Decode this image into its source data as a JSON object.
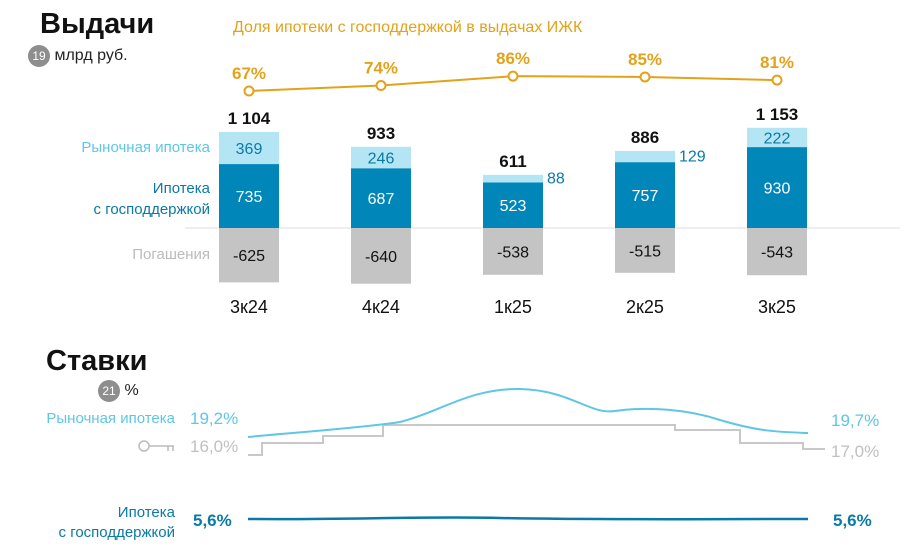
{
  "issuance": {
    "title": "Выдачи",
    "badge": "19",
    "unit": "млрд руб.",
    "legend_market": "Рыночная ипотека",
    "legend_gov_1": "Ипотека",
    "legend_gov_2": "с господдержкой",
    "legend_repay": "Погашения",
    "share_title": "Доля ипотеки с господдержкой в выдачах ИЖК"
  },
  "rates": {
    "title": "Ставки",
    "badge": "21",
    "unit": "%",
    "market_label": "Рыночная ипотека",
    "market_start": "19,2%",
    "market_end": "19,7%",
    "key_icon": "key-icon",
    "key_start": "16,0%",
    "key_end": "17,0%",
    "gov_label_1": "Ипотека",
    "gov_label_2": "с господдержкой",
    "gov_start": "5,6%",
    "gov_end": "5,6%"
  },
  "colors": {
    "market": "#b3e5f5",
    "gov": "#0086b8",
    "repay": "#c4c4c4",
    "share": "#e3a21a",
    "market_line": "#5fc6e6",
    "key_line": "#c8c8c8",
    "gov_line": "#0a7aa5"
  },
  "chart_data": {
    "type": "bar",
    "categories": [
      "3к24",
      "4к24",
      "1к25",
      "2к25",
      "3к25"
    ],
    "series": [
      {
        "name": "Рыночная ипотека",
        "values": [
          369,
          246,
          88,
          129,
          222
        ]
      },
      {
        "name": "Ипотека с господдержкой",
        "values": [
          735,
          687,
          523,
          757,
          930
        ]
      },
      {
        "name": "Погашения",
        "values": [
          -625,
          -640,
          -538,
          -515,
          -543
        ]
      }
    ],
    "totals": [
      "1 104",
      "933",
      "611",
      "886",
      "1 153"
    ],
    "share_line": {
      "name": "Доля ипотеки с господдержкой в выдачах ИЖК",
      "values": [
        67,
        74,
        86,
        85,
        81
      ],
      "labels": [
        "67%",
        "74%",
        "86%",
        "85%",
        "81%"
      ]
    }
  }
}
